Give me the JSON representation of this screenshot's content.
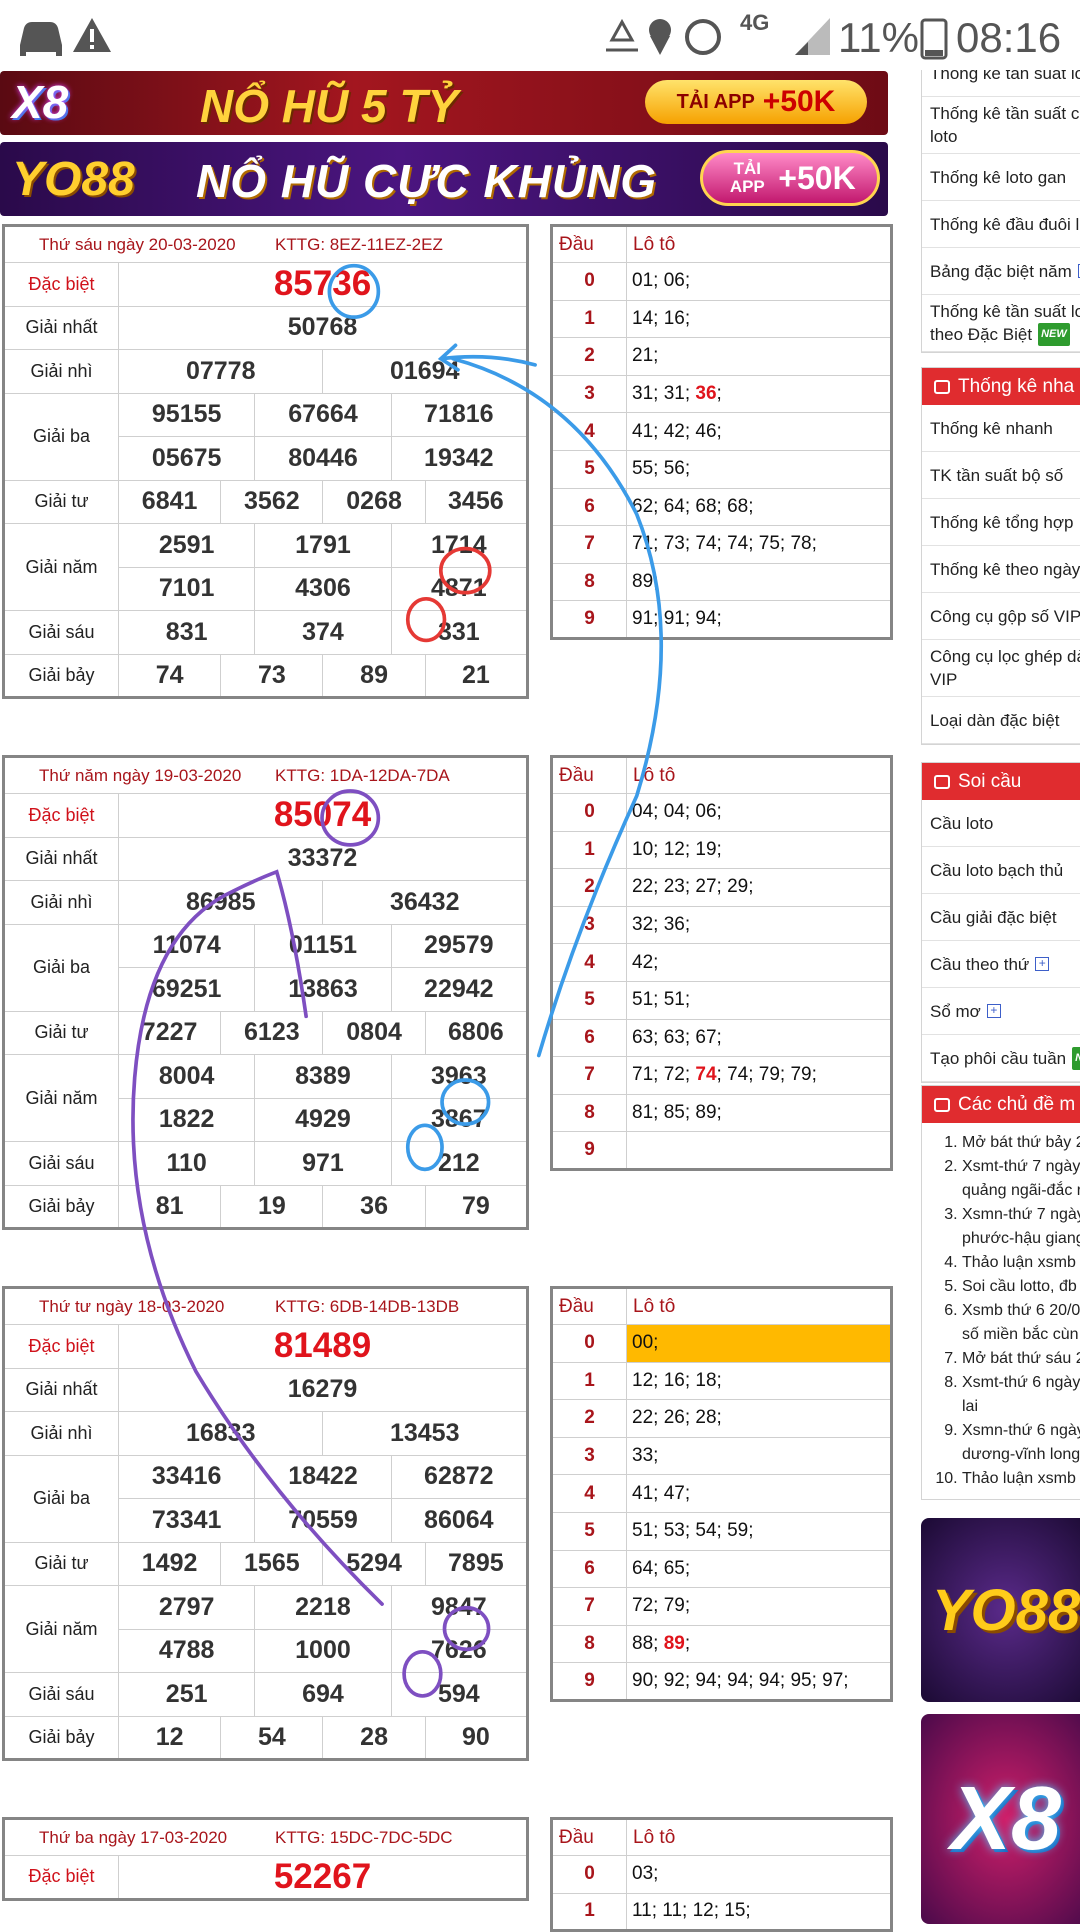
{
  "status_bar": {
    "network": "4G",
    "battery": "11%",
    "time": "08:16"
  },
  "banners": [
    {
      "logo": "X8",
      "text": "NỔ HŨ 5 TỶ",
      "button": [
        "TẢI APP",
        "+50K"
      ]
    },
    {
      "logo": "YO88",
      "text": "NỔ HŨ CỰC KHỦNG",
      "button": [
        "TẢI APP",
        "+50K"
      ]
    }
  ],
  "loto_headers": [
    "Đầu",
    "Lô tô"
  ],
  "results": [
    {
      "date": "Thứ sáu ngày 20-03-2020",
      "kttg": "KTTG: 8EZ-11EZ-2EZ",
      "prizes": [
        {
          "label": "Đặc biệt",
          "rows": [
            [
              "85736"
            ]
          ]
        },
        {
          "label": "Giải nhất",
          "rows": [
            [
              "50768"
            ]
          ]
        },
        {
          "label": "Giải nhì",
          "rows": [
            [
              "07778",
              "01694"
            ]
          ]
        },
        {
          "label": "Giải ba",
          "rows": [
            [
              "95155",
              "67664",
              "71816"
            ],
            [
              "05675",
              "80446",
              "19342"
            ]
          ]
        },
        {
          "label": "Giải tư",
          "rows": [
            [
              "6841",
              "3562",
              "0268",
              "3456"
            ]
          ]
        },
        {
          "label": "Giải năm",
          "rows": [
            [
              "2591",
              "1791",
              "1714"
            ],
            [
              "7101",
              "4306",
              "4871"
            ]
          ]
        },
        {
          "label": "Giải sáu",
          "rows": [
            [
              "831",
              "374",
              "331"
            ]
          ]
        },
        {
          "label": "Giải bảy",
          "rows": [
            [
              "74",
              "73",
              "89",
              "21"
            ]
          ]
        }
      ],
      "loto": [
        {
          "dau": "0",
          "lo": [
            "01; 06;"
          ]
        },
        {
          "dau": "1",
          "lo": [
            "14; 16;"
          ]
        },
        {
          "dau": "2",
          "lo": [
            "21;"
          ]
        },
        {
          "dau": "3",
          "lo": [
            "31; 31; ",
            "36",
            ";"
          ],
          "red": [
            1
          ]
        },
        {
          "dau": "4",
          "lo": [
            "41; 42; 46;"
          ]
        },
        {
          "dau": "5",
          "lo": [
            "55; 56;"
          ]
        },
        {
          "dau": "6",
          "lo": [
            "62; 64; 68; 68;"
          ]
        },
        {
          "dau": "7",
          "lo": [
            "71; 73; 74; 74; 75; 78;"
          ]
        },
        {
          "dau": "8",
          "lo": [
            "89;"
          ]
        },
        {
          "dau": "9",
          "lo": [
            "91; 91; 94;"
          ]
        }
      ]
    },
    {
      "date": "Thứ năm ngày 19-03-2020",
      "kttg": "KTTG: 1DA-12DA-7DA",
      "prizes": [
        {
          "label": "Đặc biệt",
          "rows": [
            [
              "85074"
            ]
          ]
        },
        {
          "label": "Giải nhất",
          "rows": [
            [
              "33372"
            ]
          ]
        },
        {
          "label": "Giải nhì",
          "rows": [
            [
              "86985",
              "36432"
            ]
          ]
        },
        {
          "label": "Giải ba",
          "rows": [
            [
              "11074",
              "01151",
              "29579"
            ],
            [
              "69251",
              "13863",
              "22942"
            ]
          ]
        },
        {
          "label": "Giải tư",
          "rows": [
            [
              "7227",
              "6123",
              "0804",
              "6806"
            ]
          ]
        },
        {
          "label": "Giải năm",
          "rows": [
            [
              "8004",
              "8389",
              "3963"
            ],
            [
              "1822",
              "4929",
              "3867"
            ]
          ]
        },
        {
          "label": "Giải sáu",
          "rows": [
            [
              "110",
              "971",
              "212"
            ]
          ]
        },
        {
          "label": "Giải bảy",
          "rows": [
            [
              "81",
              "19",
              "36",
              "79"
            ]
          ]
        }
      ],
      "loto": [
        {
          "dau": "0",
          "lo": [
            "04; 04; 06;"
          ]
        },
        {
          "dau": "1",
          "lo": [
            "10; 12; 19;"
          ]
        },
        {
          "dau": "2",
          "lo": [
            "22; 23; 27; 29;"
          ]
        },
        {
          "dau": "3",
          "lo": [
            "32; 36;"
          ]
        },
        {
          "dau": "4",
          "lo": [
            "42;"
          ]
        },
        {
          "dau": "5",
          "lo": [
            "51; 51;"
          ]
        },
        {
          "dau": "6",
          "lo": [
            "63; 63; 67;"
          ]
        },
        {
          "dau": "7",
          "lo": [
            "71; 72; ",
            "74",
            "; 74; 79; 79;"
          ],
          "red": [
            1
          ]
        },
        {
          "dau": "8",
          "lo": [
            "81; 85; 89;"
          ]
        },
        {
          "dau": "9",
          "lo": []
        }
      ]
    },
    {
      "date": "Thứ tư ngày 18-03-2020",
      "kttg": "KTTG: 6DB-14DB-13DB",
      "prizes": [
        {
          "label": "Đặc biệt",
          "rows": [
            [
              "81489"
            ]
          ]
        },
        {
          "label": "Giải nhất",
          "rows": [
            [
              "16279"
            ]
          ]
        },
        {
          "label": "Giải nhì",
          "rows": [
            [
              "16833",
              "13453"
            ]
          ]
        },
        {
          "label": "Giải ba",
          "rows": [
            [
              "33416",
              "18422",
              "62872"
            ],
            [
              "73341",
              "70559",
              "86064"
            ]
          ]
        },
        {
          "label": "Giải tư",
          "rows": [
            [
              "1492",
              "1565",
              "5294",
              "7895"
            ]
          ]
        },
        {
          "label": "Giải năm",
          "rows": [
            [
              "2797",
              "2218",
              "9847"
            ],
            [
              "4788",
              "1000",
              "7626"
            ]
          ]
        },
        {
          "label": "Giải sáu",
          "rows": [
            [
              "251",
              "694",
              "594"
            ]
          ]
        },
        {
          "label": "Giải bảy",
          "rows": [
            [
              "12",
              "54",
              "28",
              "90"
            ]
          ]
        }
      ],
      "loto": [
        {
          "dau": "0",
          "lo": [
            "00;"
          ],
          "highlight": true
        },
        {
          "dau": "1",
          "lo": [
            "12; 16; 18;"
          ]
        },
        {
          "dau": "2",
          "lo": [
            "22; 26; 28;"
          ]
        },
        {
          "dau": "3",
          "lo": [
            "33;"
          ]
        },
        {
          "dau": "4",
          "lo": [
            "41; 47;"
          ]
        },
        {
          "dau": "5",
          "lo": [
            "51; 53; 54; 59;"
          ]
        },
        {
          "dau": "6",
          "lo": [
            "64; 65;"
          ]
        },
        {
          "dau": "7",
          "lo": [
            "72; 79;"
          ]
        },
        {
          "dau": "8",
          "lo": [
            "88; ",
            "89",
            ";"
          ],
          "red": [
            1
          ]
        },
        {
          "dau": "9",
          "lo": [
            "90; 92; 94; 94; 94; 95; 97;"
          ]
        }
      ]
    },
    {
      "date": "Thứ ba ngày 17-03-2020",
      "kttg": "KTTG: 15DC-7DC-5DC",
      "prizes": [
        {
          "label": "Đặc biệt",
          "rows": [
            [
              "52267"
            ]
          ]
        }
      ],
      "loto": [
        {
          "dau": "0",
          "lo": [
            "03;"
          ]
        },
        {
          "dau": "1",
          "lo": [
            "11; 11; 12; 15;"
          ]
        }
      ]
    }
  ],
  "sidebar": {
    "sections": [
      {
        "items": [
          {
            "lines": [
              "Thống kê tần suất lo"
            ]
          },
          {
            "lines": [
              "Thống kê tần suất cặ",
              "loto"
            ]
          },
          {
            "lines": [
              "Thống kê loto gan"
            ]
          },
          {
            "lines": [
              "Thống kê đầu đuôi lo"
            ]
          },
          {
            "lines": [
              "Bảng đặc biệt năm"
            ],
            "plus": true
          },
          {
            "lines": [
              "Thống kê tần suất lo",
              "theo Đặc Biệt"
            ],
            "badge": "NEW"
          }
        ]
      },
      {
        "heading": "Thống kê nha",
        "items": [
          {
            "lines": [
              "Thống kê nhanh"
            ]
          },
          {
            "lines": [
              "TK tần suất bộ số"
            ]
          },
          {
            "lines": [
              "Thống kê tổng hợp"
            ]
          },
          {
            "lines": [
              "Thống kê theo ngày"
            ]
          },
          {
            "lines": [
              "Công cụ gộp số VIP"
            ]
          },
          {
            "lines": [
              "Công cụ lọc ghép dà",
              "VIP"
            ]
          },
          {
            "lines": [
              "Loại dàn đặc biệt"
            ]
          }
        ]
      },
      {
        "heading": "Soi cầu",
        "items": [
          {
            "lines": [
              "Cầu loto"
            ]
          },
          {
            "lines": [
              "Cầu loto bạch thủ"
            ]
          },
          {
            "lines": [
              "Cầu giải đặc biệt"
            ]
          },
          {
            "lines": [
              "Cầu theo thứ"
            ],
            "plus": true
          },
          {
            "lines": [
              "Sổ mơ"
            ],
            "plus": true
          },
          {
            "lines": [
              "Tạo phôi cầu tuần"
            ],
            "badge": "NEW"
          }
        ]
      },
      {
        "heading": "Các chủ đề m",
        "ordered": true,
        "items": [
          {
            "lines": [
              "Mở bát thứ bảy 2"
            ]
          },
          {
            "lines": [
              "Xsmt-thứ 7 ngày",
              "quảng ngãi-đắc r"
            ]
          },
          {
            "lines": [
              "Xsmn-thứ 7 ngày",
              "phước-hậu giang"
            ]
          },
          {
            "lines": [
              "Thảo luận xsmb"
            ]
          },
          {
            "lines": [
              "Soi cầu lotto, đb"
            ]
          },
          {
            "lines": [
              "Xsmb thứ 6 20/0",
              "số miền bắc cùn"
            ]
          },
          {
            "lines": [
              "Mở bát thứ sáu 2"
            ]
          },
          {
            "lines": [
              "Xsmt-thứ 6 ngày",
              "lai"
            ]
          },
          {
            "lines": [
              "Xsmn-thứ 6 ngày",
              "dương-vĩnh long"
            ]
          },
          {
            "lines": [
              "Thảo luận xsmb"
            ]
          }
        ]
      }
    ],
    "ads": [
      "YO88",
      "X8"
    ]
  }
}
